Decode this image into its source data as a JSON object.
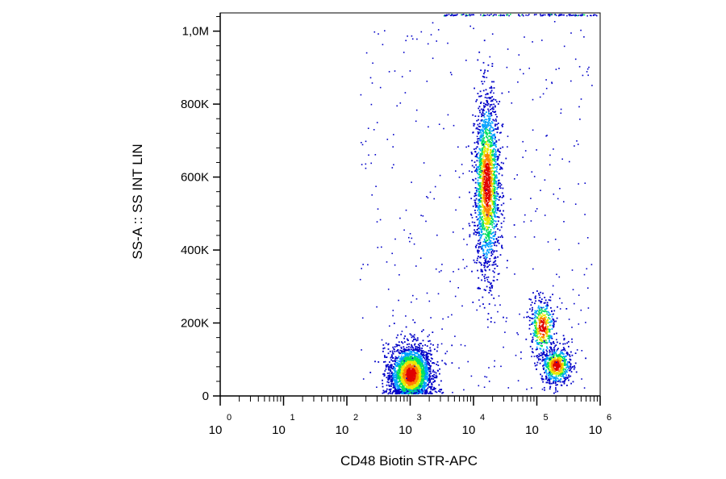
{
  "chart_data": {
    "type": "scatter",
    "subtype": "flow-cytometry-density-dot-plot",
    "xlabel": "CD48 Biotin STR-APC",
    "ylabel": "SS-A :: SS INT LIN",
    "x_scale": "log",
    "x_ticks": [
      {
        "base": "10",
        "exp": "0"
      },
      {
        "base": "10",
        "exp": "1"
      },
      {
        "base": "10",
        "exp": "2"
      },
      {
        "base": "10",
        "exp": "3"
      },
      {
        "base": "10",
        "exp": "4"
      },
      {
        "base": "10",
        "exp": "5"
      },
      {
        "base": "10",
        "exp": "6"
      }
    ],
    "y_ticks": [
      {
        "value": 0,
        "label": "0"
      },
      {
        "value": 200000,
        "label": "200K"
      },
      {
        "value": 400000,
        "label": "400K"
      },
      {
        "value": 600000,
        "label": "600K"
      },
      {
        "value": 800000,
        "label": "800K"
      },
      {
        "value": 1000000,
        "label": "1,0M"
      }
    ],
    "xlim": [
      1,
      1000000
    ],
    "ylim": [
      0,
      1050000
    ],
    "density_colormap": [
      "#0000c8",
      "#00a0ff",
      "#00e060",
      "#e8e800",
      "#ff8000",
      "#e00000"
    ],
    "clusters": [
      {
        "x_center": 1000,
        "x_spread_decades": 0.17,
        "y_center": 60000,
        "y_spread": 40000,
        "relative_size": 0.45
      },
      {
        "x_center": 16000,
        "x_spread_decades": 0.1,
        "y_center": 580000,
        "y_spread": 120000,
        "relative_size": 0.35
      },
      {
        "x_center": 200000,
        "x_spread_decades": 0.12,
        "y_center": 85000,
        "y_spread": 25000,
        "relative_size": 0.12
      },
      {
        "x_center": 120000,
        "x_spread_decades": 0.1,
        "y_center": 190000,
        "y_spread": 40000,
        "relative_size": 0.08
      }
    ]
  }
}
